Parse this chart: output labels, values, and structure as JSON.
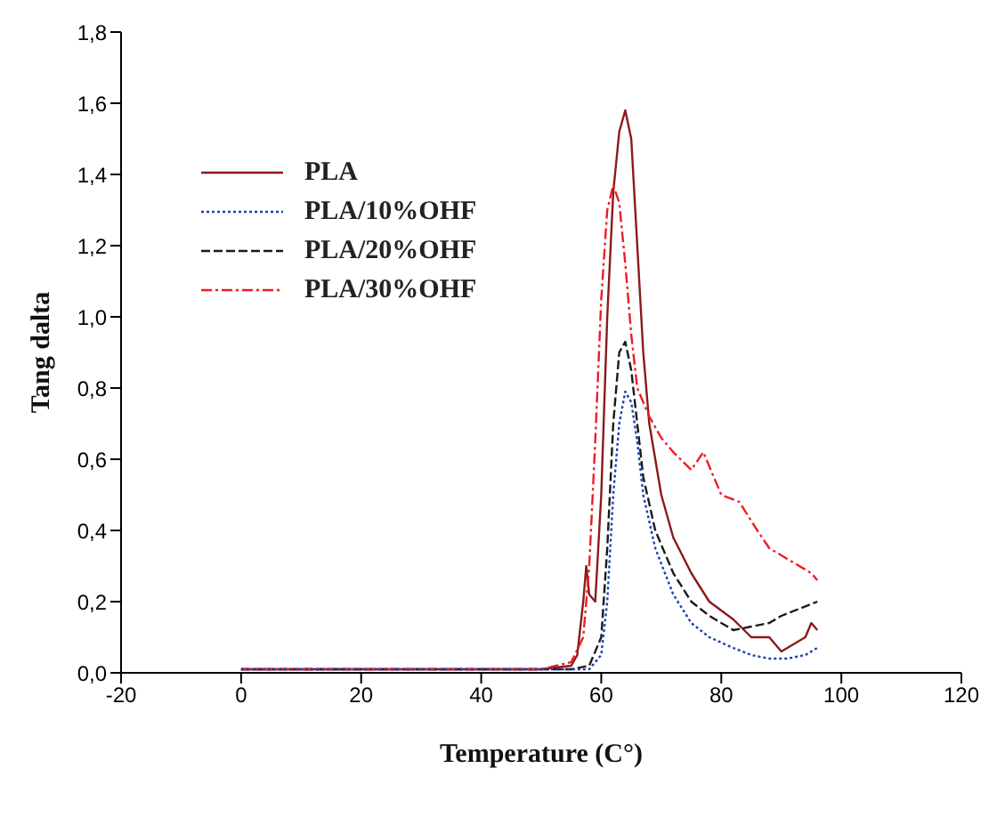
{
  "chart_data": {
    "type": "line",
    "xlabel": "Temperature (C°)",
    "ylabel": "Tang dalta",
    "xlim": [
      -20,
      120
    ],
    "xticks": [
      -20,
      0,
      20,
      40,
      60,
      80,
      100,
      120
    ],
    "ylim": [
      0,
      1.8
    ],
    "yticks": [
      {
        "value": 0,
        "label": "0,0"
      },
      {
        "value": 0.2,
        "label": "0,2"
      },
      {
        "value": 0.4,
        "label": "0,4"
      },
      {
        "value": 0.6,
        "label": "0,6"
      },
      {
        "value": 0.8,
        "label": "0,8"
      },
      {
        "value": 1,
        "label": "1,0"
      },
      {
        "value": 1.2,
        "label": "1,2"
      },
      {
        "value": 1.4,
        "label": "1,4"
      },
      {
        "value": 1.6,
        "label": "1,6"
      },
      {
        "value": 1.8,
        "label": "1,8"
      }
    ],
    "grid": false,
    "legend": "top left",
    "marker": "none",
    "series": [
      {
        "name": "PLA",
        "color": "#8b1a1a",
        "line_style": "solid",
        "x": [
          0,
          50,
          55,
          56,
          57,
          57.5,
          58,
          59,
          60,
          61,
          62,
          63,
          64,
          65,
          66,
          67,
          68,
          70,
          72,
          75,
          78,
          82,
          85,
          88,
          90,
          92,
          94,
          95,
          96
        ],
        "values": [
          0.01,
          0.01,
          0.02,
          0.05,
          0.2,
          0.3,
          0.22,
          0.2,
          0.5,
          1.0,
          1.35,
          1.52,
          1.58,
          1.5,
          1.2,
          0.9,
          0.7,
          0.5,
          0.38,
          0.28,
          0.2,
          0.15,
          0.1,
          0.1,
          0.06,
          0.08,
          0.1,
          0.14,
          0.12
        ]
      },
      {
        "name": "PLA/10%OHF",
        "color": "#2040b0",
        "line_style": "dotted",
        "x": [
          0,
          55,
          58,
          60,
          61,
          62,
          63,
          64,
          65,
          66,
          67,
          69,
          72,
          75,
          78,
          82,
          85,
          88,
          91,
          94,
          96
        ],
        "values": [
          0.01,
          0.01,
          0.01,
          0.05,
          0.2,
          0.5,
          0.7,
          0.79,
          0.76,
          0.65,
          0.5,
          0.35,
          0.22,
          0.14,
          0.1,
          0.07,
          0.05,
          0.04,
          0.04,
          0.05,
          0.07
        ]
      },
      {
        "name": "PLA/20%OHF",
        "color": "#1a1a1a",
        "line_style": "dashed",
        "x": [
          0,
          55,
          58,
          60,
          61,
          62,
          63,
          64,
          65,
          66,
          67,
          69,
          72,
          75,
          78,
          82,
          85,
          88,
          90,
          93,
          96
        ],
        "values": [
          0.01,
          0.01,
          0.02,
          0.1,
          0.35,
          0.7,
          0.9,
          0.93,
          0.85,
          0.7,
          0.55,
          0.4,
          0.28,
          0.2,
          0.16,
          0.12,
          0.13,
          0.14,
          0.16,
          0.18,
          0.2
        ]
      },
      {
        "name": "PLA/30%OHF",
        "color": "#ee1c24",
        "line_style": "dashdot",
        "x": [
          0,
          50,
          55,
          57,
          58,
          59,
          60,
          61,
          62,
          63,
          64,
          65,
          66,
          68,
          70,
          72,
          75,
          77,
          80,
          83,
          86,
          88,
          90,
          93,
          95,
          96
        ],
        "values": [
          0.01,
          0.01,
          0.03,
          0.1,
          0.3,
          0.65,
          1.05,
          1.3,
          1.37,
          1.32,
          1.15,
          0.95,
          0.8,
          0.72,
          0.66,
          0.62,
          0.57,
          0.62,
          0.5,
          0.48,
          0.4,
          0.35,
          0.33,
          0.3,
          0.28,
          0.26
        ]
      }
    ]
  }
}
